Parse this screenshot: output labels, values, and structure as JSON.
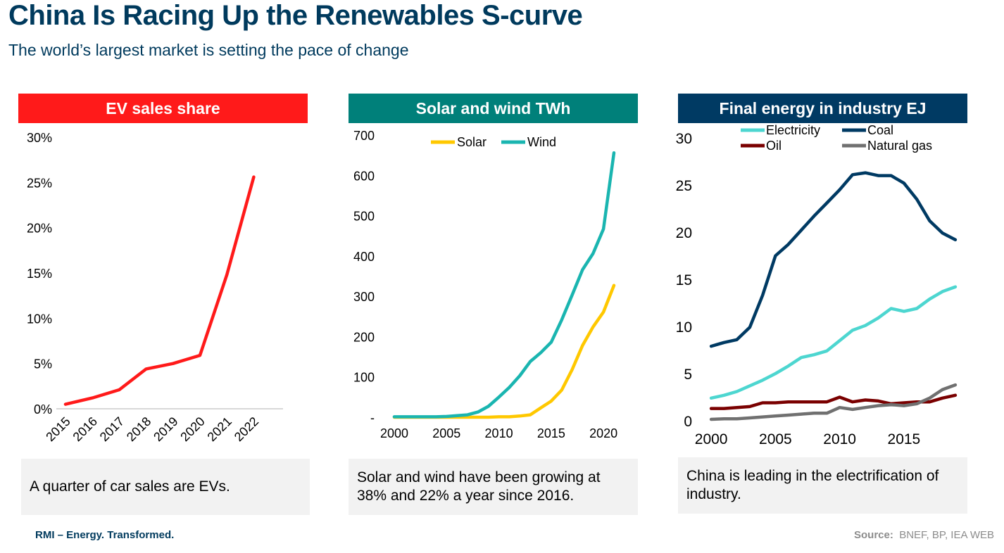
{
  "page": {
    "title": "China Is Racing Up the Renewables S-curve",
    "subtitle": "The world’s largest market is setting the pace of change",
    "footer_brand": "RMI – Energy. Transformed.",
    "source_label": "Source:",
    "source_text": "BNEF, BP, IEA WEB"
  },
  "panels": [
    {
      "header": "EV sales share",
      "header_color": "#ff1a1a",
      "caption": "A quarter of car sales are EVs."
    },
    {
      "header": "Solar and wind TWh",
      "header_color": "#00807a",
      "caption": "Solar and wind have been growing at 38% and 22% a year since 2016."
    },
    {
      "header": "Final energy in industry EJ",
      "header_color": "#003a63",
      "caption": "China is leading in the electrification of industry."
    }
  ],
  "chart_data": [
    {
      "type": "line",
      "title": "EV sales share",
      "x": [
        2015,
        2016,
        2017,
        2018,
        2019,
        2020,
        2021,
        2022
      ],
      "x_tick_labels": [
        "2015",
        "2016",
        "2017",
        "2018",
        "2019",
        "2020",
        "2021",
        "2022"
      ],
      "y_tick_labels": [
        "0%",
        "5%",
        "10%",
        "15%",
        "20%",
        "25%",
        "30%"
      ],
      "ylim": [
        0,
        30
      ],
      "series": [
        {
          "color": "#ff1a1a",
          "values": [
            0.5,
            1.2,
            2.1,
            4.4,
            5.0,
            5.9,
            14.8,
            25.6
          ]
        }
      ]
    },
    {
      "type": "line",
      "title": "Solar and wind TWh",
      "x_tick_labels": [
        "2000",
        "2005",
        "2010",
        "2015",
        "2020"
      ],
      "y_tick_labels": [
        "-",
        "100",
        "200",
        "300",
        "400",
        "500",
        "600",
        "700"
      ],
      "xlim": [
        2000,
        2021
      ],
      "ylim": [
        0,
        700
      ],
      "legend_position": "top-center",
      "series": [
        {
          "name": "Solar",
          "color": "#ffc800",
          "x": [
            2000,
            2001,
            2002,
            2003,
            2004,
            2005,
            2006,
            2007,
            2008,
            2009,
            2010,
            2011,
            2012,
            2013,
            2014,
            2015,
            2016,
            2017,
            2018,
            2019,
            2020,
            2021
          ],
          "values": [
            0,
            0,
            0,
            0,
            0,
            0,
            0,
            0,
            0,
            0,
            1,
            1,
            3,
            6,
            23,
            40,
            67,
            118,
            178,
            224,
            261,
            327
          ]
        },
        {
          "name": "Wind",
          "color": "#1ab5b0",
          "x": [
            2000,
            2001,
            2002,
            2003,
            2004,
            2005,
            2006,
            2007,
            2008,
            2009,
            2010,
            2011,
            2012,
            2013,
            2014,
            2015,
            2016,
            2017,
            2018,
            2019,
            2020,
            2021
          ],
          "values": [
            1,
            1,
            1,
            1,
            1,
            2,
            4,
            6,
            13,
            27,
            50,
            74,
            103,
            138,
            160,
            186,
            241,
            303,
            366,
            406,
            467,
            656
          ]
        }
      ]
    },
    {
      "type": "line",
      "title": "Final energy in industry EJ",
      "x_tick_labels": [
        "2000",
        "2005",
        "2010",
        "2015"
      ],
      "y_tick_labels": [
        "0",
        "5",
        "10",
        "15",
        "20",
        "25",
        "30"
      ],
      "xlim": [
        1999.5,
        2019.5
      ],
      "ylim": [
        0,
        30
      ],
      "legend_position": "top",
      "series": [
        {
          "name": "Electricity",
          "color": "#4dd6d0",
          "x": [
            2000,
            2001,
            2002,
            2003,
            2004,
            2005,
            2006,
            2007,
            2008,
            2009,
            2010,
            2011,
            2012,
            2013,
            2014,
            2015,
            2016,
            2017,
            2018,
            2019
          ],
          "values": [
            2.4,
            2.7,
            3.1,
            3.7,
            4.3,
            5.0,
            5.8,
            6.7,
            7.0,
            7.4,
            8.5,
            9.6,
            10.1,
            10.9,
            11.9,
            11.6,
            11.9,
            12.9,
            13.7,
            14.2
          ]
        },
        {
          "name": "Coal",
          "color": "#003a63",
          "x": [
            2000,
            2001,
            2002,
            2003,
            2004,
            2005,
            2006,
            2007,
            2008,
            2009,
            2010,
            2011,
            2012,
            2013,
            2014,
            2015,
            2016,
            2017,
            2018,
            2019
          ],
          "values": [
            7.9,
            8.3,
            8.6,
            9.9,
            13.3,
            17.5,
            18.7,
            20.2,
            21.7,
            23.1,
            24.5,
            26.1,
            26.3,
            26.0,
            26.0,
            25.2,
            23.5,
            21.2,
            19.9,
            19.2
          ]
        },
        {
          "name": "Oil",
          "color": "#7a0000",
          "x": [
            2000,
            2001,
            2002,
            2003,
            2004,
            2005,
            2006,
            2007,
            2008,
            2009,
            2010,
            2011,
            2012,
            2013,
            2014,
            2015,
            2016,
            2017,
            2018,
            2019
          ],
          "values": [
            1.3,
            1.3,
            1.4,
            1.5,
            1.9,
            1.9,
            2.0,
            2.0,
            2.0,
            2.0,
            2.5,
            2.0,
            2.2,
            2.1,
            1.8,
            1.9,
            2.0,
            2.0,
            2.4,
            2.7
          ]
        },
        {
          "name": "Natural gas",
          "color": "#707070",
          "x": [
            2000,
            2001,
            2002,
            2003,
            2004,
            2005,
            2006,
            2007,
            2008,
            2009,
            2010,
            2011,
            2012,
            2013,
            2014,
            2015,
            2016,
            2017,
            2018,
            2019
          ],
          "values": [
            0.15,
            0.2,
            0.2,
            0.3,
            0.4,
            0.5,
            0.6,
            0.7,
            0.8,
            0.8,
            1.4,
            1.2,
            1.4,
            1.6,
            1.7,
            1.6,
            1.8,
            2.4,
            3.3,
            3.8
          ]
        }
      ]
    }
  ]
}
